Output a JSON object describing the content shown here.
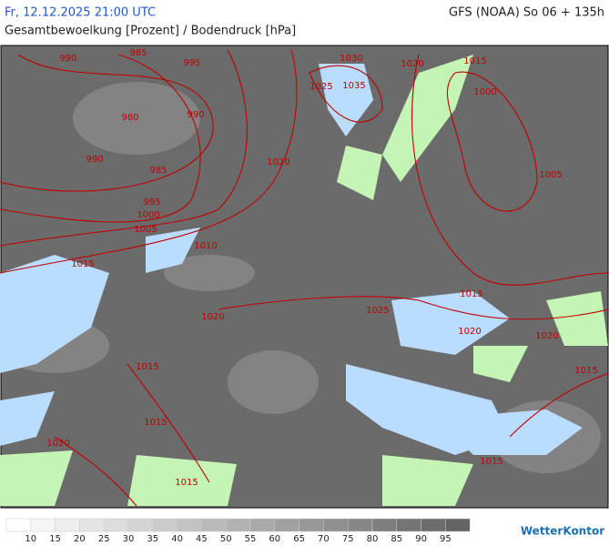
{
  "header": {
    "date": "Fr, 12.12.2025 21:00 UTC",
    "model": "GFS (NOAA) So 06 + 135h",
    "subtitle": "Gesamtbewoelkung [Prozent] / Bodendruck [hPa]"
  },
  "isobar_labels": [
    990,
    985,
    995,
    980,
    990,
    990,
    985,
    995,
    1000,
    1005,
    1010,
    1015,
    1020,
    1030,
    1025,
    1035,
    1020,
    1015,
    1000,
    1005,
    1015,
    1025,
    1020,
    1020,
    1020,
    1015,
    1015,
    1015,
    1020,
    1015,
    1015
  ],
  "legend": {
    "levels": [
      10,
      15,
      20,
      25,
      30,
      35,
      40,
      45,
      50,
      55,
      60,
      65,
      70,
      75,
      80,
      85,
      90,
      95
    ]
  },
  "logo": "WetterKontor"
}
